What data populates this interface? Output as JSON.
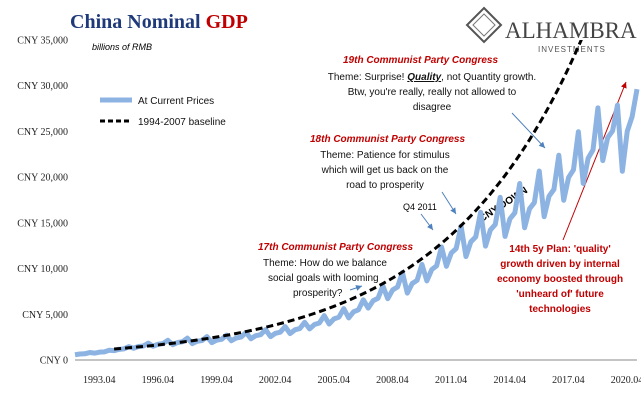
{
  "chart_data": {
    "type": "line",
    "title": "China Nominal ",
    "title_highlight": "GDP",
    "subtitle": "billions of RMB",
    "logo": {
      "name": "ALHAMBRA",
      "tagline": "INVESTMENTS"
    },
    "categories": [
      null,
      null,
      null,
      null,
      null,
      null,
      null,
      "1993.04",
      null,
      null,
      null,
      null,
      null,
      null,
      null,
      null,
      null,
      null,
      null,
      "1996.04",
      null,
      null,
      null,
      null,
      null,
      null,
      null,
      null,
      null,
      null,
      null,
      "1999.04",
      null,
      null,
      null,
      null,
      null,
      null,
      null,
      null,
      null,
      null,
      null,
      "2002.04",
      null,
      null,
      null,
      null,
      null,
      null,
      null,
      null,
      null,
      null,
      null,
      "2005.04",
      null,
      null,
      null,
      null,
      null,
      null,
      null,
      null,
      null,
      null,
      null,
      "2008.04",
      null,
      null,
      null,
      null,
      null,
      null,
      null,
      null,
      null,
      null,
      null,
      "2011.04",
      null,
      null,
      null,
      null,
      null,
      null,
      null,
      null,
      null,
      null,
      null,
      "2014.04",
      null,
      null,
      null,
      null,
      null,
      null,
      null,
      null,
      null,
      null,
      null,
      "2017.04",
      null,
      null,
      null,
      null,
      null,
      null,
      null,
      null,
      null,
      null,
      null,
      "2020.04"
    ],
    "series": [
      {
        "name": "At Current Prices",
        "color": "#8db3e2",
        "dashed": false,
        "values": [
          571,
          653,
          680,
          816,
          749,
          856,
          892,
          1070,
          1021,
          1167,
          1216,
          1459,
          1288,
          1472,
          1534,
          1840,
          1508,
          1723,
          1795,
          2154,
          1674,
          1913,
          1993,
          2391,
          1789,
          2045,
          2130,
          2556,
          1902,
          2173,
          2264,
          2717,
          2106,
          2407,
          2507,
          3008,
          2328,
          2661,
          2772,
          3326,
          2556,
          2921,
          3043,
          3652,
          2886,
          3298,
          3436,
          4123,
          3399,
          3884,
          4046,
          4855,
          3934,
          4496,
          4683,
          5620,
          4608,
          5267,
          5486,
          6583,
          5672,
          6482,
          6752,
          8103,
          6704,
          7662,
          7981,
          9577,
          7319,
          8364,
          8713,
          10456,
          8655,
          9891,
          10303,
          12364,
          10247,
          11711,
          12199,
          14638,
          11310,
          12926,
          13465,
          16157,
          12452,
          14231,
          14824,
          17789,
          13515,
          15445,
          16089,
          19307,
          14466,
          16533,
          17222,
          20666,
          15674,
          17914,
          18660,
          22392,
          17473,
          19969,
          20801,
          24961,
          19305,
          22063,
          22982,
          27578,
          21806,
          24327,
          25052,
          27869,
          20650,
          25011,
          26617,
          29625
        ]
      },
      {
        "name": "1994-2007 baseline",
        "color": "#000000",
        "dashed": true,
        "values": [
          null,
          null,
          null,
          null,
          null,
          null,
          null,
          null,
          1200,
          1243,
          1288,
          1334,
          1382,
          1432,
          1483,
          1537,
          1591,
          1648,
          1708,
          1769,
          1833,
          1899,
          1967,
          2038,
          2110,
          2186,
          2265,
          2346,
          2430,
          2517,
          2608,
          2702,
          2799,
          2900,
          3004,
          3112,
          3223,
          3339,
          3459,
          3584,
          3712,
          3846,
          3984,
          4127,
          4274,
          4428,
          4587,
          4752,
          4922,
          5099,
          5283,
          5473,
          5668,
          5872,
          6083,
          6302,
          6528,
          6763,
          7006,
          7259,
          7517,
          7788,
          8068,
          8358,
          8657,
          8969,
          9292,
          9626,
          9969,
          10328,
          10700,
          11085,
          11480,
          11893,
          12322,
          12765,
          13221,
          13697,
          14190,
          14701,
          15225,
          15773,
          16341,
          16929,
          17533,
          18164,
          18818,
          19495,
          20191,
          20918,
          21671,
          22450,
          23252,
          24089,
          24956,
          25854,
          26777,
          27741,
          28740,
          29773,
          30836,
          31946,
          33096,
          34287,
          35511,
          null,
          null,
          null,
          null,
          null,
          null,
          null,
          null,
          null,
          null,
          null
        ]
      }
    ],
    "ylim": [
      0,
      35000
    ],
    "yticks": [
      {
        "value": 0,
        "label": "CNY 0"
      },
      {
        "value": 5000,
        "label": "CNY 5,000"
      },
      {
        "value": 10000,
        "label": "CNY 10,000"
      },
      {
        "value": 15000,
        "label": "CNY 15,000"
      },
      {
        "value": 20000,
        "label": "CNY 20,000"
      },
      {
        "value": 25000,
        "label": "CNY 25,000"
      },
      {
        "value": 30000,
        "label": "CNY 30,000"
      },
      {
        "value": 35000,
        "label": "CNY 35,000"
      }
    ],
    "grid": false,
    "annotations": {
      "c19": {
        "title": "19th Communist Party Congress",
        "line1": [
          "Theme: Surprise! ",
          "Quality",
          ", not Quantity growth."
        ],
        "lines": [
          "Btw, you're really, really not allowed to",
          "disagree"
        ]
      },
      "c18": {
        "title": "18th Communist Party Congress",
        "lines": [
          "Theme: Patience for stimulus",
          "which will get us back on the",
          "road to prosperity"
        ]
      },
      "c17": {
        "title": "17th Communist Party Congress",
        "lines": [
          "Theme: How do we balance",
          "social goals with looming",
          "prosperity?"
        ]
      },
      "q4": "Q4 2011",
      "cny_down": "CNY DOWN",
      "plan14": [
        "14th 5y Plan: 'quality'",
        "growth driven by internal",
        "economy boosted through",
        "'unheard of' future",
        "technologies"
      ]
    }
  }
}
